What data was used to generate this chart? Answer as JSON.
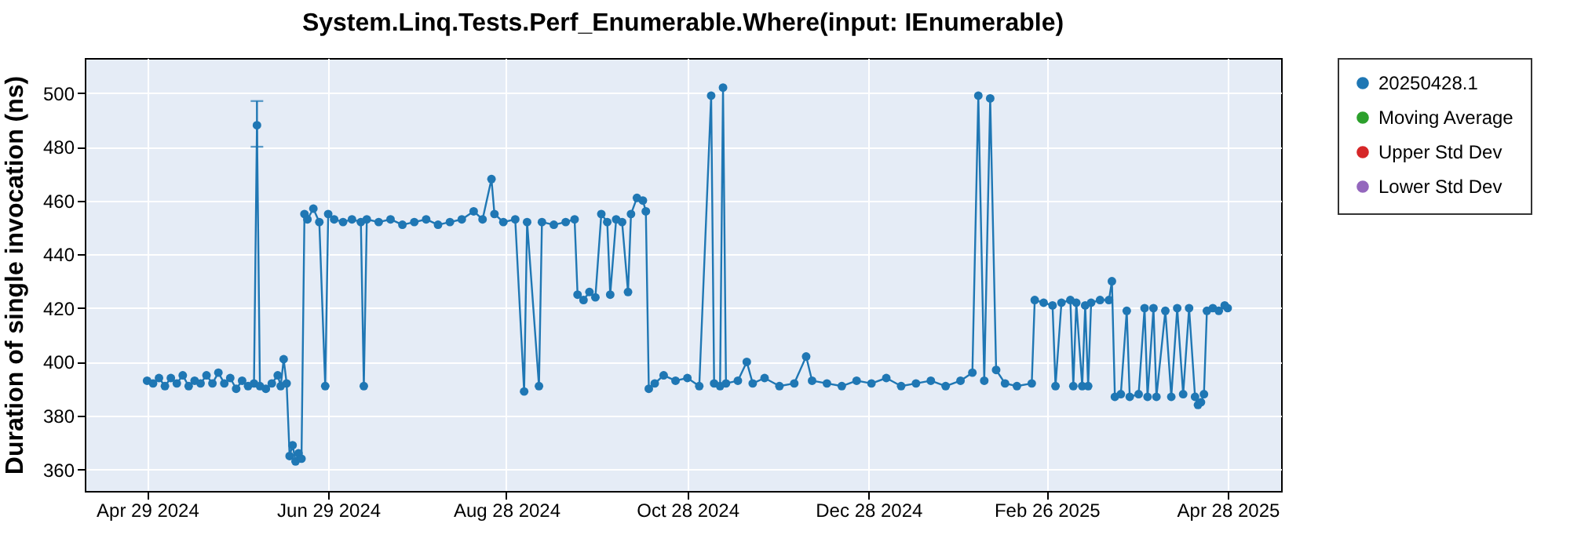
{
  "chart_data": {
    "type": "line",
    "title": "System.Linq.Tests.Perf_Enumerable.Where(input: IEnumerable)",
    "ylabel": "Duration of single invocation (ns)",
    "xlim": [
      "2024-04-08",
      "2025-05-16"
    ],
    "xticks": [
      {
        "value": "2024-04-29",
        "label": "Apr 29 2024"
      },
      {
        "value": "2024-06-29",
        "label": "Jun 29 2024"
      },
      {
        "value": "2024-08-28",
        "label": "Aug 28 2024"
      },
      {
        "value": "2024-10-28",
        "label": "Oct 28 2024"
      },
      {
        "value": "2024-12-28",
        "label": "Dec 28 2024"
      },
      {
        "value": "2025-02-26",
        "label": "Feb 26 2025"
      },
      {
        "value": "2025-04-28",
        "label": "Apr 28 2025"
      }
    ],
    "ylim": [
      352,
      513
    ],
    "yticks": [
      360,
      380,
      400,
      420,
      440,
      460,
      480,
      500
    ],
    "grid": true,
    "legend": "right",
    "marker": "circle",
    "series": [
      {
        "name": "20250428.1",
        "color": "#1f77b4",
        "x": [
          "2024-04-29",
          "2024-05-01",
          "2024-05-03",
          "2024-05-05",
          "2024-05-07",
          "2024-05-09",
          "2024-05-11",
          "2024-05-13",
          "2024-05-15",
          "2024-05-17",
          "2024-05-19",
          "2024-05-21",
          "2024-05-23",
          "2024-05-25",
          "2024-05-27",
          "2024-05-29",
          "2024-05-31",
          "2024-06-02",
          "2024-06-04",
          "2024-06-05",
          "2024-06-06",
          "2024-06-08",
          "2024-06-10",
          "2024-06-12",
          "2024-06-13",
          "2024-06-14",
          "2024-06-15",
          "2024-06-16",
          "2024-06-17",
          "2024-06-18",
          "2024-06-19",
          "2024-06-20",
          "2024-06-21",
          "2024-06-22",
          "2024-06-24",
          "2024-06-26",
          "2024-06-28",
          "2024-06-29",
          "2024-07-01",
          "2024-07-04",
          "2024-07-07",
          "2024-07-10",
          "2024-07-11",
          "2024-07-12",
          "2024-07-16",
          "2024-07-20",
          "2024-07-24",
          "2024-07-28",
          "2024-08-01",
          "2024-08-05",
          "2024-08-09",
          "2024-08-13",
          "2024-08-17",
          "2024-08-20",
          "2024-08-23",
          "2024-08-24",
          "2024-08-27",
          "2024-08-31",
          "2024-09-03",
          "2024-09-04",
          "2024-09-08",
          "2024-09-09",
          "2024-09-13",
          "2024-09-17",
          "2024-09-20",
          "2024-09-21",
          "2024-09-23",
          "2024-09-25",
          "2024-09-27",
          "2024-09-29",
          "2024-10-01",
          "2024-10-02",
          "2024-10-04",
          "2024-10-06",
          "2024-10-08",
          "2024-10-09",
          "2024-10-11",
          "2024-10-13",
          "2024-10-14",
          "2024-10-15",
          "2024-10-17",
          "2024-10-20",
          "2024-10-24",
          "2024-10-28",
          "2024-11-01",
          "2024-11-05",
          "2024-11-06",
          "2024-11-08",
          "2024-11-09",
          "2024-11-10",
          "2024-11-14",
          "2024-11-17",
          "2024-11-19",
          "2024-11-23",
          "2024-11-28",
          "2024-12-03",
          "2024-12-07",
          "2024-12-09",
          "2024-12-14",
          "2024-12-19",
          "2024-12-24",
          "2024-12-29",
          "2025-01-03",
          "2025-01-08",
          "2025-01-13",
          "2025-01-18",
          "2025-01-23",
          "2025-01-28",
          "2025-02-01",
          "2025-02-03",
          "2025-02-05",
          "2025-02-07",
          "2025-02-09",
          "2025-02-12",
          "2025-02-16",
          "2025-02-21",
          "2025-02-22",
          "2025-02-25",
          "2025-02-28",
          "2025-03-01",
          "2025-03-03",
          "2025-03-06",
          "2025-03-07",
          "2025-03-08",
          "2025-03-10",
          "2025-03-11",
          "2025-03-12",
          "2025-03-13",
          "2025-03-16",
          "2025-03-19",
          "2025-03-20",
          "2025-03-21",
          "2025-03-23",
          "2025-03-25",
          "2025-03-26",
          "2025-03-29",
          "2025-03-31",
          "2025-04-01",
          "2025-04-03",
          "2025-04-04",
          "2025-04-07",
          "2025-04-09",
          "2025-04-11",
          "2025-04-13",
          "2025-04-15",
          "2025-04-17",
          "2025-04-18",
          "2025-04-19",
          "2025-04-20",
          "2025-04-21",
          "2025-04-23",
          "2025-04-25",
          "2025-04-27",
          "2025-04-28"
        ],
        "values": [
          393,
          392,
          394,
          391,
          394,
          392,
          395,
          391,
          393,
          392,
          395,
          392,
          396,
          392,
          394,
          390,
          393,
          391,
          392,
          488,
          391,
          390,
          392,
          395,
          391,
          401,
          392,
          365,
          369,
          363,
          366,
          364,
          455,
          453,
          457,
          452,
          391,
          455,
          453,
          452,
          453,
          452,
          391,
          453,
          452,
          453,
          451,
          452,
          453,
          451,
          452,
          453,
          456,
          453,
          468,
          455,
          452,
          453,
          389,
          452,
          391,
          452,
          451,
          452,
          453,
          425,
          423,
          426,
          424,
          455,
          452,
          425,
          453,
          452,
          426,
          455,
          461,
          460,
          456,
          390,
          392,
          395,
          393,
          394,
          391,
          499,
          392,
          391,
          502,
          392,
          393,
          400,
          392,
          394,
          391,
          392,
          402,
          393,
          392,
          391,
          393,
          392,
          394,
          391,
          392,
          393,
          391,
          393,
          396,
          499,
          393,
          498,
          397,
          392,
          391,
          392,
          423,
          422,
          421,
          391,
          422,
          423,
          391,
          422,
          391,
          421,
          391,
          422,
          423,
          423,
          430,
          387,
          388,
          419,
          387,
          388,
          420,
          387,
          420,
          387,
          419,
          387,
          420,
          388,
          420,
          387,
          384,
          385,
          388,
          419,
          420,
          419,
          421,
          420
        ],
        "errors": [
          null,
          null,
          null,
          null,
          null,
          null,
          null,
          null,
          null,
          null,
          null,
          null,
          null,
          null,
          null,
          null,
          null,
          null,
          null,
          [
            480,
            497
          ],
          null,
          null,
          null,
          null,
          null,
          null,
          null,
          null,
          null,
          null,
          null,
          null,
          null,
          null,
          null,
          null,
          null,
          null,
          null,
          null,
          null,
          null,
          null,
          null,
          null,
          null,
          null,
          null,
          null,
          null,
          null,
          null,
          null,
          null,
          null,
          null,
          null,
          null,
          null,
          null,
          null,
          null,
          null,
          null,
          null,
          null,
          null,
          null,
          null,
          null,
          null,
          null,
          null,
          null,
          null,
          null,
          null,
          null,
          null,
          null,
          null,
          null,
          null,
          null,
          null,
          null,
          null,
          null,
          null,
          null,
          null,
          null,
          null,
          null,
          null,
          null,
          null,
          null,
          null,
          null,
          null,
          null,
          null,
          null,
          null,
          null,
          null,
          null,
          null,
          null,
          null,
          null,
          null,
          null,
          null,
          null,
          null,
          null,
          null,
          null,
          null,
          null,
          null,
          null,
          null,
          null,
          null,
          null,
          null,
          null,
          null,
          null,
          null,
          null,
          null,
          null,
          null,
          null,
          null,
          null,
          null,
          null,
          null,
          null,
          null,
          null,
          null,
          null,
          null,
          null,
          null,
          null,
          null,
          null
        ]
      },
      {
        "name": "Moving Average",
        "color": "#2ca02c"
      },
      {
        "name": "Upper Std Dev",
        "color": "#d62728"
      },
      {
        "name": "Lower Std Dev",
        "color": "#9467bd"
      }
    ]
  }
}
